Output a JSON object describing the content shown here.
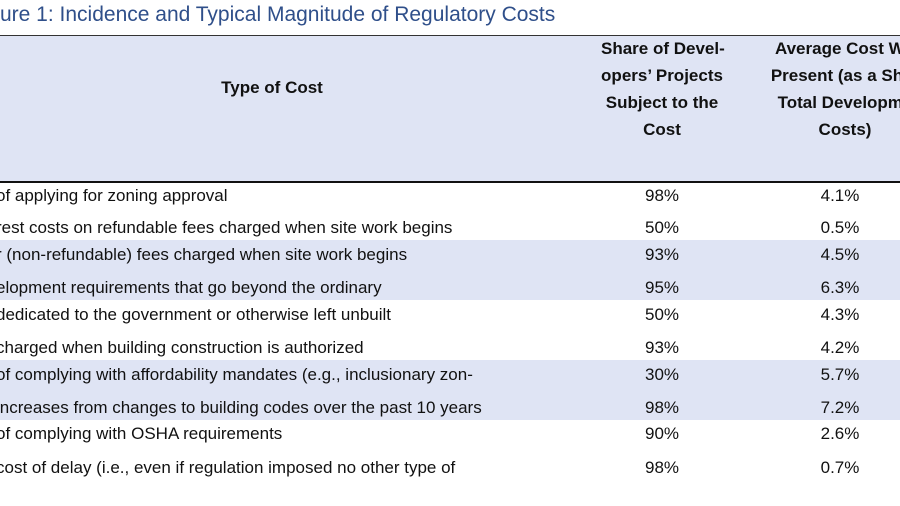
{
  "header": {
    "title": "ure 1: Incidence and Typical Magnitude of Regulatory Costs"
  },
  "table": {
    "columns": [
      "Type of Cost",
      [
        "Share of Devel-",
        "opers’ Projects",
        "Subject to the",
        "Cost"
      ],
      [
        "Average Cost Wh",
        "Present (as a Shar",
        "Total Developme",
        "Costs)"
      ]
    ],
    "rows": [
      [
        " of applying for zoning approval",
        "98%",
        "4.1%"
      ],
      [
        "rest costs on refundable fees charged when site work begins",
        "50%",
        "0.5%"
      ],
      [
        "r (non-refundable) fees charged when site work begins",
        "93%",
        "4.5%"
      ],
      [
        "elopment requirements that go beyond the ordinary",
        "95%",
        "6.3%"
      ],
      [
        " dedicated to the government or otherwise left unbuilt",
        "50%",
        "4.3%"
      ],
      [
        " charged when building construction is authorized",
        "93%",
        "4.2%"
      ],
      [
        " of complying with affordability mandates (e.g., inclusionary zon-",
        "30%",
        "5.7%"
      ],
      [
        " increases from changes to building codes over the past 10 years",
        "98%",
        "7.2%"
      ],
      [
        " of complying with OSHA requirements",
        "90%",
        "2.6%"
      ],
      [
        " cost of delay (i.e., even if regulation imposed no other type of",
        "98%",
        "0.7%"
      ]
    ]
  }
}
